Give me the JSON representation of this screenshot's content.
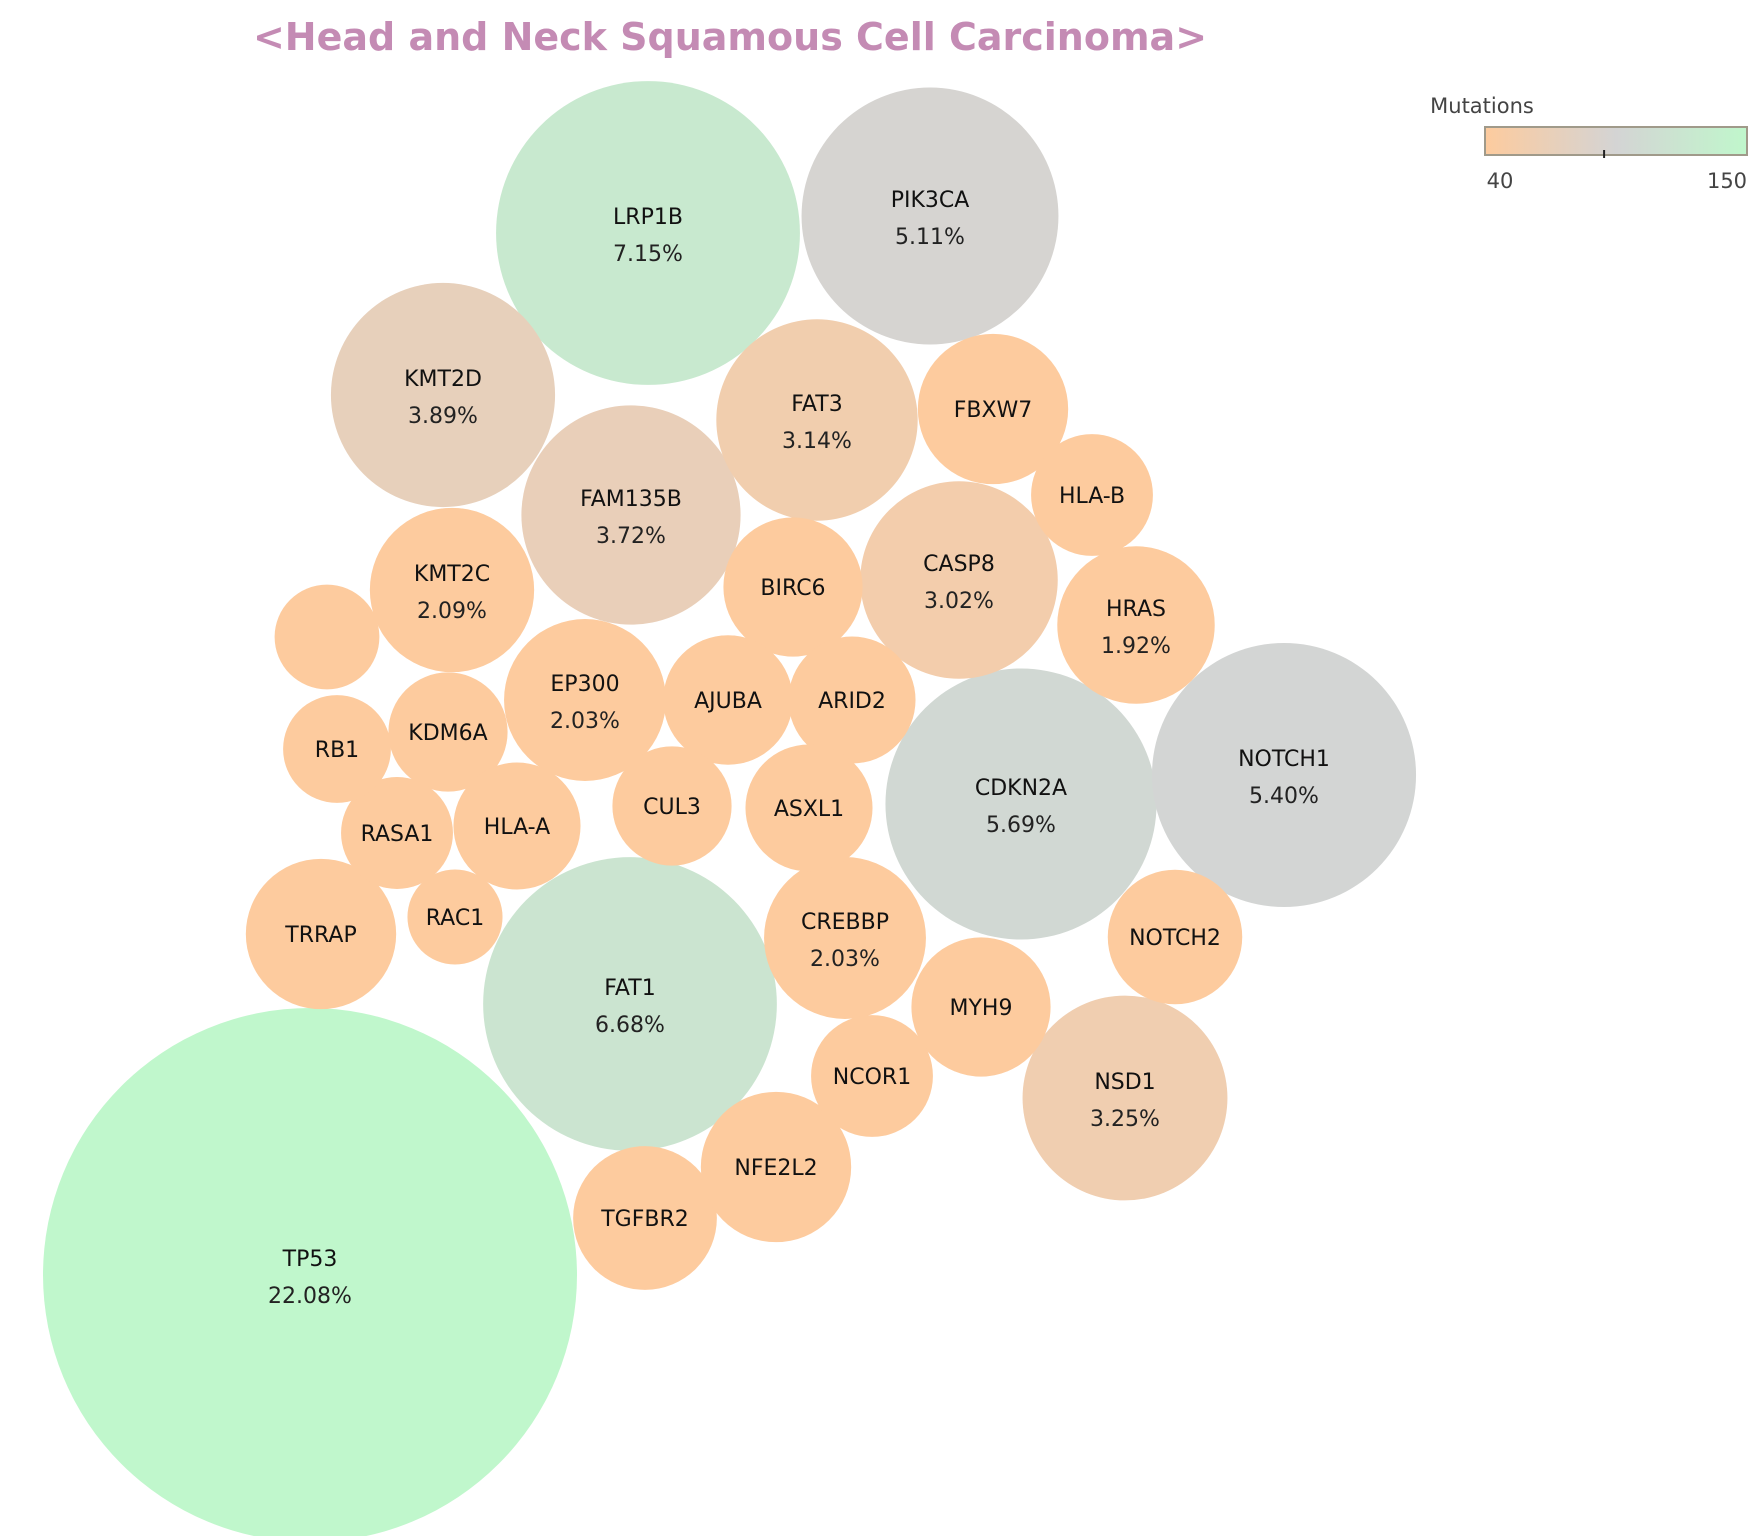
{
  "title": "<Head and Neck Squamous Cell Carcinoma>",
  "title_color": "#c48bb4",
  "colorbar": {
    "title": "Mutations",
    "min_label": "40",
    "max_label": "150",
    "min": 40,
    "max": 150,
    "tick_value": 90,
    "color_low": "#fdcb9e",
    "color_mid": "#d4d4d4",
    "color_high": "#c0f7cc"
  },
  "chart_data": {
    "type": "bubble",
    "size_field": "percent",
    "color_field": "mutations",
    "bubbles": [
      {
        "gene": "TP53",
        "percent_label": "22.08%",
        "percent": 22.08,
        "mutations": 150
      },
      {
        "gene": "LRP1B",
        "percent_label": "7.15%",
        "percent": 7.15,
        "mutations": 128
      },
      {
        "gene": "FAT1",
        "percent_label": "6.68%",
        "percent": 6.68,
        "mutations": 120
      },
      {
        "gene": "CDKN2A",
        "percent_label": "5.69%",
        "percent": 5.69,
        "mutations": 102
      },
      {
        "gene": "NOTCH1",
        "percent_label": "5.40%",
        "percent": 5.4,
        "mutations": 97
      },
      {
        "gene": "PIK3CA",
        "percent_label": "5.11%",
        "percent": 5.11,
        "mutations": 92
      },
      {
        "gene": "KMT2D",
        "percent_label": "3.89%",
        "percent": 3.89,
        "mutations": 70
      },
      {
        "gene": "FAM135B",
        "percent_label": "3.72%",
        "percent": 3.72,
        "mutations": 67
      },
      {
        "gene": "NSD1",
        "percent_label": "3.25%",
        "percent": 3.25,
        "mutations": 58
      },
      {
        "gene": "FAT3",
        "percent_label": "3.14%",
        "percent": 3.14,
        "mutations": 56
      },
      {
        "gene": "CASP8",
        "percent_label": "3.02%",
        "percent": 3.02,
        "mutations": 54
      },
      {
        "gene": "KMT2C",
        "percent_label": "2.09%",
        "percent": 2.09,
        "mutations": 38
      },
      {
        "gene": "EP300",
        "percent_label": "2.03%",
        "percent": 2.03,
        "mutations": 37
      },
      {
        "gene": "CREBBP",
        "percent_label": "2.03%",
        "percent": 2.03,
        "mutations": 36
      },
      {
        "gene": "HRAS",
        "percent_label": "1.92%",
        "percent": 1.92,
        "mutations": 34
      },
      {
        "gene": "FBXW7",
        "percent_label": "",
        "percent": 1.75,
        "mutations": 31
      },
      {
        "gene": "TRRAP",
        "percent_label": "",
        "percent": 1.75,
        "mutations": 31
      },
      {
        "gene": "TGFBR2",
        "percent_label": "",
        "percent": 1.6,
        "mutations": 29
      },
      {
        "gene": "NFE2L2",
        "percent_label": "",
        "percent": 1.75,
        "mutations": 31
      },
      {
        "gene": "BIRC6",
        "percent_label": "",
        "percent": 1.5,
        "mutations": 27
      },
      {
        "gene": "HLA-B",
        "percent_label": "",
        "percent": 1.15,
        "mutations": 21
      },
      {
        "gene": "AJUBA",
        "percent_label": "",
        "percent": 1.3,
        "mutations": 24
      },
      {
        "gene": "ARID2",
        "percent_label": "",
        "percent": 1.25,
        "mutations": 23
      },
      {
        "gene": "ASXL1",
        "percent_label": "",
        "percent": 1.25,
        "mutations": 23
      },
      {
        "gene": "CUL3",
        "percent_label": "",
        "percent": 1.1,
        "mutations": 20
      },
      {
        "gene": "MYH9",
        "percent_label": "",
        "percent": 1.5,
        "mutations": 27
      },
      {
        "gene": "NCOR1",
        "percent_label": "",
        "percent": 1.15,
        "mutations": 21
      },
      {
        "gene": "NOTCH2",
        "percent_label": "",
        "percent": 1.4,
        "mutations": 25
      },
      {
        "gene": "KDM6A",
        "percent_label": "",
        "percent": 1.1,
        "mutations": 20
      },
      {
        "gene": "HLA-A",
        "percent_label": "",
        "percent": 1.25,
        "mutations": 23
      },
      {
        "gene": "RASA1",
        "percent_label": "",
        "percent": 0.97,
        "mutations": 18
      },
      {
        "gene": "RB1",
        "percent_label": "",
        "percent": 0.9,
        "mutations": 17
      },
      {
        "gene": "RAC1",
        "percent_label": "",
        "percent": 0.7,
        "mutations": 13
      },
      {
        "gene": "",
        "percent_label": "",
        "percent": 0.85,
        "mutations": 16
      }
    ]
  }
}
